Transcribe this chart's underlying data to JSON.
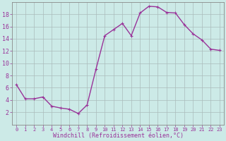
{
  "x": [
    0,
    1,
    2,
    3,
    4,
    5,
    6,
    7,
    8,
    9,
    10,
    11,
    12,
    13,
    14,
    15,
    16,
    17,
    18,
    19,
    20,
    21,
    22,
    23
  ],
  "y": [
    6.5,
    4.2,
    4.2,
    4.5,
    3.0,
    2.7,
    2.5,
    1.8,
    3.2,
    9.0,
    14.5,
    15.5,
    16.5,
    14.5,
    18.2,
    19.3,
    19.2,
    18.3,
    18.2,
    16.3,
    14.8,
    13.8,
    12.3,
    12.1
  ],
  "line_color": "#993399",
  "marker": "+",
  "marker_size": 3,
  "marker_edge_width": 0.8,
  "bg_color": "#cceae7",
  "grid_color": "#aabbbb",
  "xlabel": "Windchill (Refroidissement éolien,°C)",
  "xlabel_color": "#993399",
  "tick_color": "#993399",
  "xlim": [
    -0.5,
    23.5
  ],
  "ylim": [
    0,
    20
  ],
  "yticks": [
    2,
    4,
    6,
    8,
    10,
    12,
    14,
    16,
    18
  ],
  "xticks": [
    0,
    1,
    2,
    3,
    4,
    5,
    6,
    7,
    8,
    9,
    10,
    11,
    12,
    13,
    14,
    15,
    16,
    17,
    18,
    19,
    20,
    21,
    22,
    23
  ],
  "xtick_labels": [
    "0",
    "1",
    "2",
    "3",
    "4",
    "5",
    "6",
    "7",
    "8",
    "9",
    "10",
    "11",
    "12",
    "13",
    "14",
    "15",
    "16",
    "17",
    "18",
    "19",
    "20",
    "21",
    "22",
    "23"
  ],
  "spine_color": "#888888",
  "linewidth": 1.0,
  "xlabel_fontsize": 6.0,
  "xtick_fontsize": 5.0,
  "ytick_fontsize": 6.0
}
